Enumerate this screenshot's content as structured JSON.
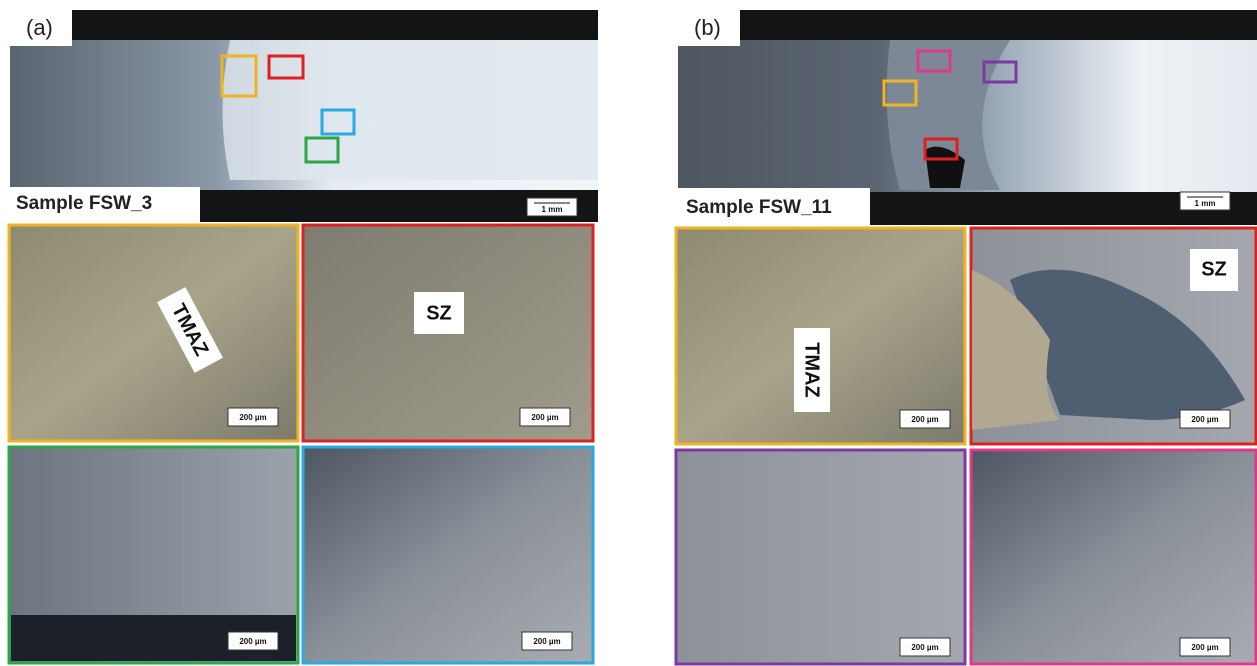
{
  "panels": [
    {
      "label": "(a)",
      "sample": "Sample FSW_3",
      "macro_scale": "1 mm",
      "micrographs": [
        {
          "label": "TMAZ",
          "scale": "200 µm"
        },
        {
          "label": "SZ",
          "scale": "200 µm"
        },
        {
          "scale": "200 µm"
        },
        {
          "scale": "200 µm"
        }
      ]
    },
    {
      "label": "(b)",
      "sample": "Sample FSW_11",
      "macro_scale": "1 mm",
      "micrographs": [
        {
          "label": "TMAZ",
          "scale": "200 µm"
        },
        {
          "label": "SZ",
          "scale": "200 µm"
        },
        {
          "scale": "200 µm"
        },
        {
          "scale": "200 µm"
        }
      ]
    }
  ]
}
